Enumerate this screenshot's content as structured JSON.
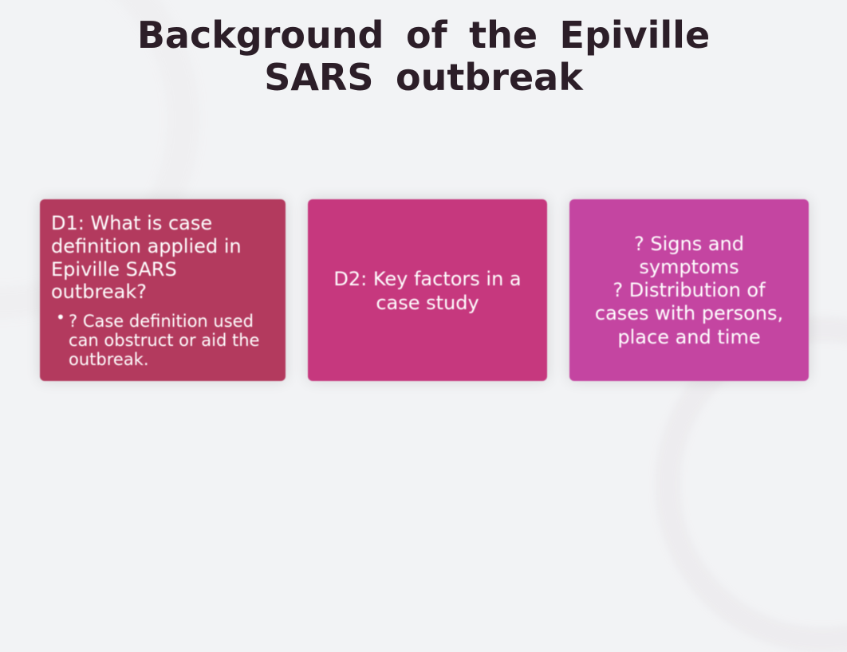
{
  "title": "Background of the Epiville SARS outbreak",
  "colors": {
    "background": "#f2f3f5",
    "title_text": "#2c1e28",
    "card_text": "#ffffff",
    "card1_bg": "#b33a5e",
    "card2_bg": "#c6387e",
    "card3_bg": "#c445a1"
  },
  "cards": [
    {
      "heading": "D1: What is case definition applied in Epiville SARS outbreak?",
      "bullet": "? Case definition used can obstruct or aid the outbreak."
    },
    {
      "text": "D2:  Key factors in a case study"
    },
    {
      "text": "? Signs and symptoms\n? Distribution of cases with persons, place and time"
    }
  ]
}
